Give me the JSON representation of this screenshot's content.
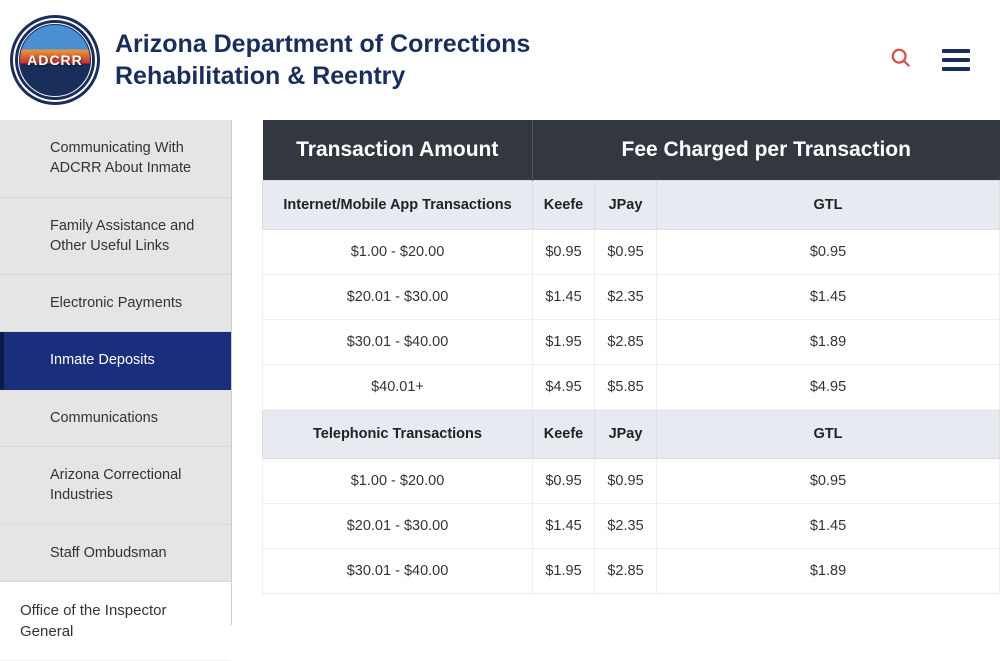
{
  "header": {
    "title_line1": "Arizona Department of Corrections",
    "title_line2": "Rehabilitation & Reentry",
    "logo_abbr": "ADCRR"
  },
  "colors": {
    "brand_navy": "#1a2e5c",
    "accent_red": "#d9534f",
    "table_header_bg": "#333840",
    "subhead_bg": "#e8eaf1",
    "sidebar_bg": "#e5e5e5",
    "active_bg": "#1a2e7c"
  },
  "sidebar": {
    "items": [
      {
        "label": "Communicating With ADCRR About Inmate",
        "active": false
      },
      {
        "label": "Family Assistance and Other Useful Links",
        "active": false
      },
      {
        "label": "Electronic Payments",
        "active": false
      },
      {
        "label": "Inmate Deposits",
        "active": true
      },
      {
        "label": "Communications",
        "active": false
      },
      {
        "label": "Arizona Correctional Industries",
        "active": false
      },
      {
        "label": "Staff Ombudsman",
        "active": false
      }
    ],
    "bottom_item": {
      "label": "Office of the Inspector General"
    }
  },
  "table": {
    "header_cols": [
      "Transaction Amount",
      "Fee Charged per Transaction"
    ],
    "provider_labels": [
      "Keefe",
      "JPay",
      "GTL"
    ],
    "sections": [
      {
        "title": "Internet/Mobile App Transactions",
        "rows": [
          {
            "amount": "$1.00 - $20.00",
            "fees": [
              "$0.95",
              "$0.95",
              "$0.95"
            ]
          },
          {
            "amount": "$20.01 - $30.00",
            "fees": [
              "$1.45",
              "$2.35",
              "$1.45"
            ]
          },
          {
            "amount": "$30.01 - $40.00",
            "fees": [
              "$1.95",
              "$2.85",
              "$1.89"
            ]
          },
          {
            "amount": "$40.01+",
            "fees": [
              "$4.95",
              "$5.85",
              "$4.95"
            ]
          }
        ]
      },
      {
        "title": "Telephonic Transactions",
        "rows": [
          {
            "amount": "$1.00 - $20.00",
            "fees": [
              "$0.95",
              "$0.95",
              "$0.95"
            ]
          },
          {
            "amount": "$20.01 - $30.00",
            "fees": [
              "$1.45",
              "$2.35",
              "$1.45"
            ]
          },
          {
            "amount": "$30.01 - $40.00",
            "fees": [
              "$1.95",
              "$2.85",
              "$1.89"
            ]
          }
        ]
      }
    ]
  }
}
